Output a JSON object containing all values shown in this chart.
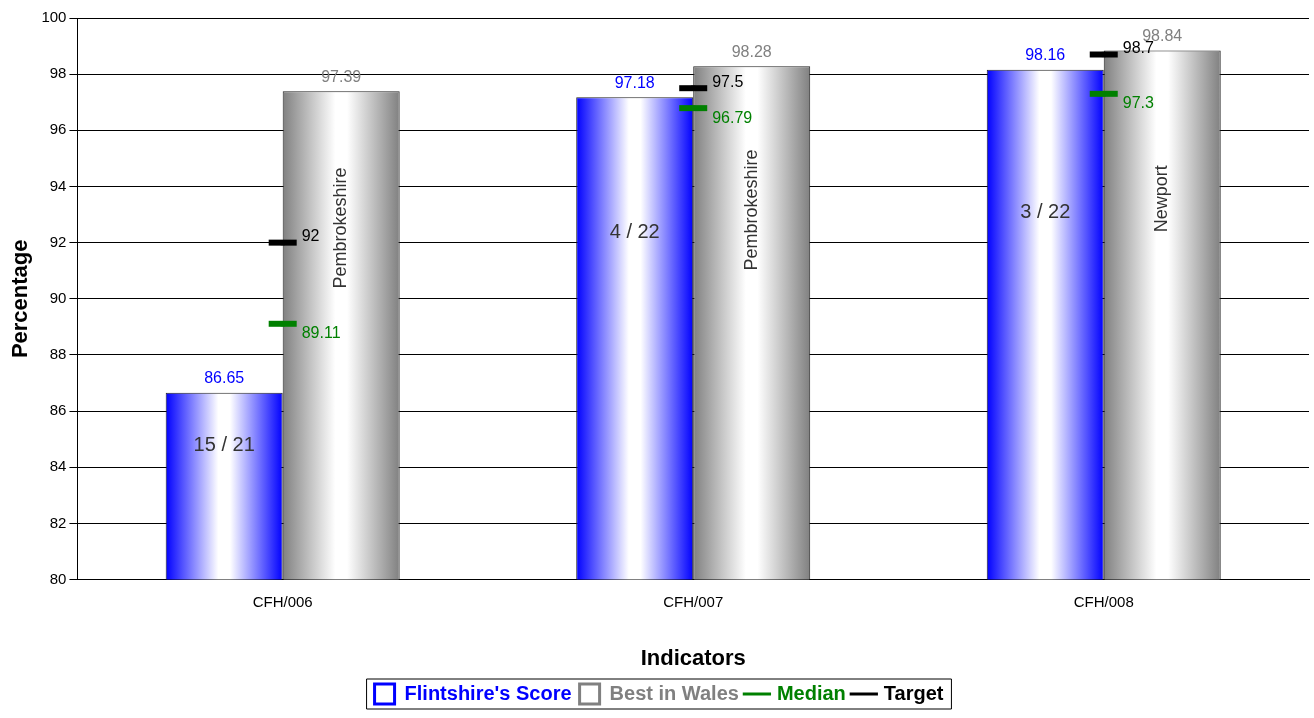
{
  "chart_data": {
    "type": "bar",
    "xlabel": "Indicators",
    "ylabel": "Percentage",
    "categories": [
      "CFH/006",
      "CFH/007",
      "CFH/008"
    ],
    "series": [
      {
        "name": "Flintshire's Score",
        "color": "#0000ff",
        "values": [
          86.65,
          97.18,
          98.16
        ]
      },
      {
        "name": "Best in Wales",
        "color": "#808080",
        "values": [
          97.39,
          98.28,
          98.84
        ]
      },
      {
        "name": "Median",
        "type": "scatter",
        "color": "#008000",
        "x": [
          "CFH/006",
          "CFH/007",
          "CFH/008"
        ],
        "values": [
          89.11,
          96.79,
          97.3
        ]
      },
      {
        "name": "Target",
        "type": "scatter",
        "color": "#000000",
        "x": [
          "CFH/006",
          "CFH/007",
          "CFH/008"
        ],
        "values": [
          92,
          97.5,
          98.7
        ]
      }
    ],
    "ylim": [
      80,
      100
    ],
    "yticks": [
      80,
      82,
      84,
      86,
      88,
      90,
      92,
      94,
      96,
      98,
      100
    ],
    "grid": "y",
    "legend": "bottom",
    "data_labels": true,
    "annotations": [
      "15 / 21",
      "Pembrokeshire",
      "4 / 22",
      "Pembrokeshire",
      "3 / 22",
      "Newport"
    ]
  }
}
